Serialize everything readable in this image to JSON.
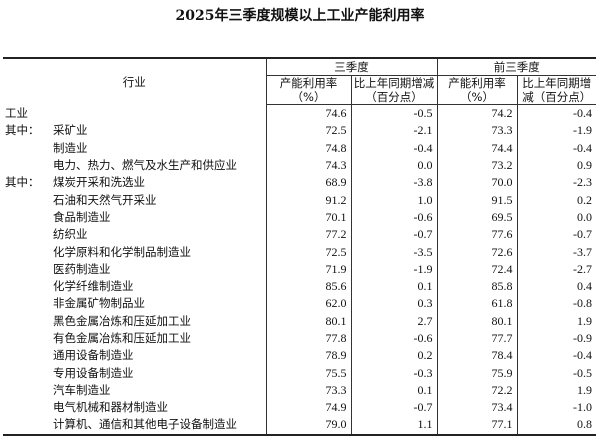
{
  "title": "2025年三季度规模以上工业产能利用率",
  "header": {
    "industry": "行业",
    "q3": "三季度",
    "ytd": "前三季度",
    "rate": "产能利用率（%）",
    "change": "比上年同期增减（百分点）"
  },
  "rows": [
    {
      "prefix": "",
      "name": "工业",
      "indent": 0,
      "v": [
        "74.6",
        "-0.5",
        "74.2",
        "-0.4"
      ]
    },
    {
      "prefix": "其中：",
      "name": "采矿业",
      "indent": 0,
      "v": [
        "72.5",
        "-2.1",
        "73.3",
        "-1.9"
      ]
    },
    {
      "prefix": "",
      "name": "制造业",
      "indent": 1,
      "v": [
        "74.8",
        "-0.4",
        "74.4",
        "-0.4"
      ]
    },
    {
      "prefix": "",
      "name": "电力、热力、燃气及水生产和供应业",
      "indent": 1,
      "v": [
        "74.3",
        "0.0",
        "73.2",
        "0.9"
      ]
    },
    {
      "prefix": "其中：",
      "name": "煤炭开采和洗选业",
      "indent": 0,
      "v": [
        "68.9",
        "-3.8",
        "70.0",
        "-2.3"
      ]
    },
    {
      "prefix": "",
      "name": "石油和天然气开采业",
      "indent": 1,
      "v": [
        "91.2",
        "1.0",
        "91.5",
        "0.2"
      ]
    },
    {
      "prefix": "",
      "name": "食品制造业",
      "indent": 1,
      "v": [
        "70.1",
        "-0.6",
        "69.5",
        "0.0"
      ]
    },
    {
      "prefix": "",
      "name": "纺织业",
      "indent": 1,
      "v": [
        "77.2",
        "-0.7",
        "77.6",
        "-0.7"
      ]
    },
    {
      "prefix": "",
      "name": "化学原料和化学制品制造业",
      "indent": 1,
      "v": [
        "72.5",
        "-3.5",
        "72.6",
        "-3.7"
      ]
    },
    {
      "prefix": "",
      "name": "医药制造业",
      "indent": 1,
      "v": [
        "71.9",
        "-1.9",
        "72.4",
        "-2.7"
      ]
    },
    {
      "prefix": "",
      "name": "化学纤维制造业",
      "indent": 1,
      "v": [
        "85.6",
        "0.1",
        "85.8",
        "0.4"
      ]
    },
    {
      "prefix": "",
      "name": "非金属矿物制品业",
      "indent": 1,
      "v": [
        "62.0",
        "0.3",
        "61.8",
        "-0.8"
      ]
    },
    {
      "prefix": "",
      "name": "黑色金属冶炼和压延加工业",
      "indent": 1,
      "v": [
        "80.1",
        "2.7",
        "80.1",
        "1.9"
      ]
    },
    {
      "prefix": "",
      "name": "有色金属冶炼和压延加工业",
      "indent": 1,
      "v": [
        "77.8",
        "-0.6",
        "77.7",
        "-0.9"
      ]
    },
    {
      "prefix": "",
      "name": "通用设备制造业",
      "indent": 1,
      "v": [
        "78.9",
        "0.2",
        "78.4",
        "-0.4"
      ]
    },
    {
      "prefix": "",
      "name": "专用设备制造业",
      "indent": 1,
      "v": [
        "75.5",
        "-0.3",
        "75.9",
        "-0.5"
      ]
    },
    {
      "prefix": "",
      "name": "汽车制造业",
      "indent": 1,
      "v": [
        "73.3",
        "0.1",
        "72.2",
        "1.9"
      ]
    },
    {
      "prefix": "",
      "name": "电气机械和器材制造业",
      "indent": 1,
      "v": [
        "74.9",
        "-0.7",
        "73.4",
        "-1.0"
      ]
    },
    {
      "prefix": "",
      "name": "计算机、通信和其他电子设备制造业",
      "indent": 1,
      "v": [
        "79.0",
        "1.1",
        "77.1",
        "0.8"
      ]
    }
  ]
}
